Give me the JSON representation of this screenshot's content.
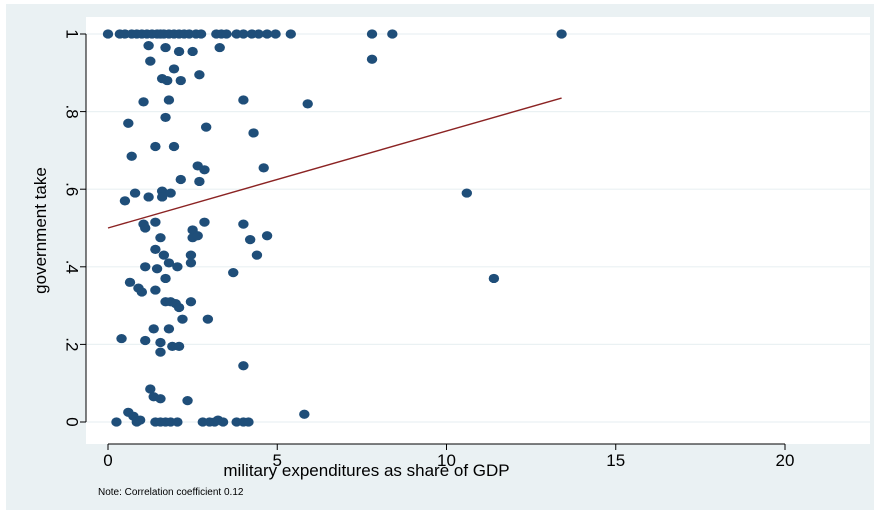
{
  "chart_data": {
    "type": "scatter",
    "xlabel": "military expenditures as share of GDP",
    "ylabel": "government take",
    "note": "Note: Correlation coefficient 0.12",
    "xlim": [
      0,
      20
    ],
    "ylim": [
      0,
      1
    ],
    "xticks": [
      0,
      5,
      10,
      15,
      20
    ],
    "yticks": [
      0,
      0.2,
      0.4,
      0.6,
      0.8,
      1
    ],
    "ytick_labels": [
      "0",
      ".2",
      ".4",
      ".6",
      ".8",
      "1"
    ],
    "grid": "horizontal",
    "colors": {
      "background": "#eaf1f3",
      "plot_background": "#ffffff",
      "grid": "#eaf1f3",
      "marker": "#1f4e79",
      "fit_line": "#8b2323"
    },
    "fit_line": {
      "x": [
        0,
        13.4
      ],
      "y": [
        0.5,
        0.835
      ]
    },
    "points": [
      {
        "x": 0.0,
        "y": 1.0
      },
      {
        "x": 0.35,
        "y": 1.0
      },
      {
        "x": 0.5,
        "y": 1.0
      },
      {
        "x": 0.7,
        "y": 1.0
      },
      {
        "x": 0.85,
        "y": 1.0
      },
      {
        "x": 1.0,
        "y": 1.0
      },
      {
        "x": 1.15,
        "y": 1.0
      },
      {
        "x": 1.3,
        "y": 1.0
      },
      {
        "x": 1.45,
        "y": 1.0
      },
      {
        "x": 1.55,
        "y": 1.0
      },
      {
        "x": 1.65,
        "y": 1.0
      },
      {
        "x": 1.8,
        "y": 1.0
      },
      {
        "x": 1.95,
        "y": 1.0
      },
      {
        "x": 2.1,
        "y": 1.0
      },
      {
        "x": 2.25,
        "y": 1.0
      },
      {
        "x": 2.4,
        "y": 1.0
      },
      {
        "x": 2.6,
        "y": 1.0
      },
      {
        "x": 2.75,
        "y": 1.0
      },
      {
        "x": 3.2,
        "y": 1.0
      },
      {
        "x": 3.35,
        "y": 1.0
      },
      {
        "x": 3.5,
        "y": 1.0
      },
      {
        "x": 3.8,
        "y": 1.0
      },
      {
        "x": 4.0,
        "y": 1.0
      },
      {
        "x": 4.25,
        "y": 1.0
      },
      {
        "x": 4.45,
        "y": 1.0
      },
      {
        "x": 4.7,
        "y": 1.0
      },
      {
        "x": 4.95,
        "y": 1.0
      },
      {
        "x": 5.4,
        "y": 1.0
      },
      {
        "x": 7.8,
        "y": 1.0
      },
      {
        "x": 8.4,
        "y": 1.0
      },
      {
        "x": 13.4,
        "y": 1.0
      },
      {
        "x": 7.8,
        "y": 0.935
      },
      {
        "x": 1.2,
        "y": 0.97
      },
      {
        "x": 1.7,
        "y": 0.965
      },
      {
        "x": 2.1,
        "y": 0.955
      },
      {
        "x": 2.5,
        "y": 0.955
      },
      {
        "x": 3.3,
        "y": 0.965
      },
      {
        "x": 1.25,
        "y": 0.93
      },
      {
        "x": 1.95,
        "y": 0.91
      },
      {
        "x": 2.7,
        "y": 0.895
      },
      {
        "x": 1.6,
        "y": 0.885
      },
      {
        "x": 1.75,
        "y": 0.88
      },
      {
        "x": 2.15,
        "y": 0.88
      },
      {
        "x": 1.05,
        "y": 0.825
      },
      {
        "x": 1.8,
        "y": 0.83
      },
      {
        "x": 4.0,
        "y": 0.83
      },
      {
        "x": 5.9,
        "y": 0.82
      },
      {
        "x": 1.7,
        "y": 0.785
      },
      {
        "x": 0.6,
        "y": 0.77
      },
      {
        "x": 2.9,
        "y": 0.76
      },
      {
        "x": 4.3,
        "y": 0.745
      },
      {
        "x": 1.4,
        "y": 0.71
      },
      {
        "x": 1.95,
        "y": 0.71
      },
      {
        "x": 0.7,
        "y": 0.685
      },
      {
        "x": 2.65,
        "y": 0.66
      },
      {
        "x": 2.85,
        "y": 0.65
      },
      {
        "x": 4.6,
        "y": 0.655
      },
      {
        "x": 2.15,
        "y": 0.625
      },
      {
        "x": 2.7,
        "y": 0.62
      },
      {
        "x": 0.8,
        "y": 0.59
      },
      {
        "x": 1.6,
        "y": 0.595
      },
      {
        "x": 1.85,
        "y": 0.59
      },
      {
        "x": 10.6,
        "y": 0.59
      },
      {
        "x": 1.2,
        "y": 0.58
      },
      {
        "x": 1.6,
        "y": 0.58
      },
      {
        "x": 0.5,
        "y": 0.57
      },
      {
        "x": 1.05,
        "y": 0.51
      },
      {
        "x": 1.1,
        "y": 0.5
      },
      {
        "x": 1.4,
        "y": 0.515
      },
      {
        "x": 2.85,
        "y": 0.515
      },
      {
        "x": 4.0,
        "y": 0.51
      },
      {
        "x": 2.5,
        "y": 0.495
      },
      {
        "x": 1.55,
        "y": 0.475
      },
      {
        "x": 2.5,
        "y": 0.475
      },
      {
        "x": 2.65,
        "y": 0.48
      },
      {
        "x": 4.2,
        "y": 0.47
      },
      {
        "x": 4.7,
        "y": 0.48
      },
      {
        "x": 1.4,
        "y": 0.445
      },
      {
        "x": 1.65,
        "y": 0.43
      },
      {
        "x": 2.45,
        "y": 0.43
      },
      {
        "x": 4.4,
        "y": 0.43
      },
      {
        "x": 1.8,
        "y": 0.41
      },
      {
        "x": 2.45,
        "y": 0.41
      },
      {
        "x": 1.1,
        "y": 0.4
      },
      {
        "x": 1.45,
        "y": 0.395
      },
      {
        "x": 2.05,
        "y": 0.4
      },
      {
        "x": 3.7,
        "y": 0.385
      },
      {
        "x": 1.7,
        "y": 0.37
      },
      {
        "x": 0.65,
        "y": 0.36
      },
      {
        "x": 11.4,
        "y": 0.37
      },
      {
        "x": 0.9,
        "y": 0.345
      },
      {
        "x": 1.0,
        "y": 0.335
      },
      {
        "x": 1.4,
        "y": 0.34
      },
      {
        "x": 1.7,
        "y": 0.31
      },
      {
        "x": 1.85,
        "y": 0.31
      },
      {
        "x": 2.0,
        "y": 0.305
      },
      {
        "x": 2.1,
        "y": 0.295
      },
      {
        "x": 2.45,
        "y": 0.31
      },
      {
        "x": 2.2,
        "y": 0.265
      },
      {
        "x": 2.95,
        "y": 0.265
      },
      {
        "x": 1.35,
        "y": 0.24
      },
      {
        "x": 1.8,
        "y": 0.24
      },
      {
        "x": 0.4,
        "y": 0.215
      },
      {
        "x": 1.1,
        "y": 0.21
      },
      {
        "x": 1.55,
        "y": 0.205
      },
      {
        "x": 1.9,
        "y": 0.195
      },
      {
        "x": 2.1,
        "y": 0.195
      },
      {
        "x": 1.55,
        "y": 0.18
      },
      {
        "x": 4.0,
        "y": 0.145
      },
      {
        "x": 1.25,
        "y": 0.085
      },
      {
        "x": 1.35,
        "y": 0.065
      },
      {
        "x": 1.55,
        "y": 0.06
      },
      {
        "x": 2.35,
        "y": 0.055
      },
      {
        "x": 0.6,
        "y": 0.025
      },
      {
        "x": 0.75,
        "y": 0.015
      },
      {
        "x": 5.8,
        "y": 0.02
      },
      {
        "x": 0.25,
        "y": 0.0
      },
      {
        "x": 0.85,
        "y": 0.0
      },
      {
        "x": 0.95,
        "y": 0.005
      },
      {
        "x": 1.4,
        "y": 0.0
      },
      {
        "x": 1.55,
        "y": 0.0
      },
      {
        "x": 1.7,
        "y": 0.0
      },
      {
        "x": 1.85,
        "y": 0.0
      },
      {
        "x": 2.05,
        "y": 0.0
      },
      {
        "x": 2.8,
        "y": 0.0
      },
      {
        "x": 3.0,
        "y": 0.0
      },
      {
        "x": 3.15,
        "y": 0.0
      },
      {
        "x": 3.25,
        "y": 0.005
      },
      {
        "x": 3.4,
        "y": 0.0
      },
      {
        "x": 3.8,
        "y": 0.0
      },
      {
        "x": 4.0,
        "y": 0.0
      },
      {
        "x": 4.15,
        "y": 0.0
      }
    ]
  }
}
